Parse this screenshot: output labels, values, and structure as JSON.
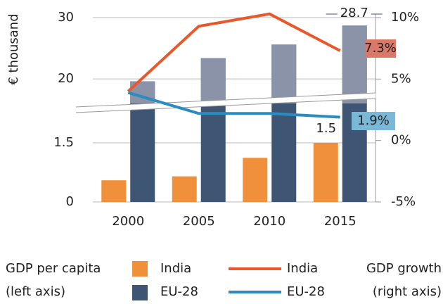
{
  "chart_data": {
    "type": "bar",
    "ylabel": "€ thousand",
    "categories": [
      "2000",
      "2005",
      "2010",
      "2015"
    ],
    "ylim": [
      0,
      30
    ],
    "ybreak": [
      2.5,
      16
    ],
    "yticks": [
      0,
      1.5,
      20,
      30
    ],
    "y2lim": [
      -5,
      10
    ],
    "y2ticks": [
      {
        "value": -5,
        "label": "-5%"
      },
      {
        "value": 0,
        "label": "0%"
      },
      {
        "value": 5,
        "label": "5%"
      },
      {
        "value": 10,
        "label": "10%"
      }
    ],
    "grid": true,
    "series": [
      {
        "name": "India",
        "type": "bar",
        "color": "#f0903a",
        "values": [
          0.55,
          0.65,
          1.12,
          1.5
        ]
      },
      {
        "name": "EU-28",
        "type": "bar",
        "color": "#3e5673",
        "upper_color": "#8a93a8",
        "values": [
          19.6,
          23.4,
          25.6,
          28.7
        ]
      },
      {
        "name": "India",
        "type": "line",
        "axis": "y2",
        "color": "#e8582b",
        "label_color": "#d9796a",
        "values": [
          4.0,
          9.3,
          10.3,
          7.3
        ],
        "value_labels": [
          null,
          null,
          null,
          "7.3%"
        ]
      },
      {
        "name": "EU-28",
        "type": "line",
        "axis": "y2",
        "color": "#2a8cc0",
        "label_color": "#7ab8d8",
        "values": [
          3.9,
          2.2,
          2.2,
          1.9
        ],
        "value_labels": [
          null,
          null,
          null,
          "1.9%"
        ]
      }
    ],
    "legend_groups": [
      {
        "title": "GDP per capita",
        "subtitle": "(left axis)"
      },
      {
        "title": "GDP growth",
        "subtitle": "(right axis)"
      }
    ]
  }
}
